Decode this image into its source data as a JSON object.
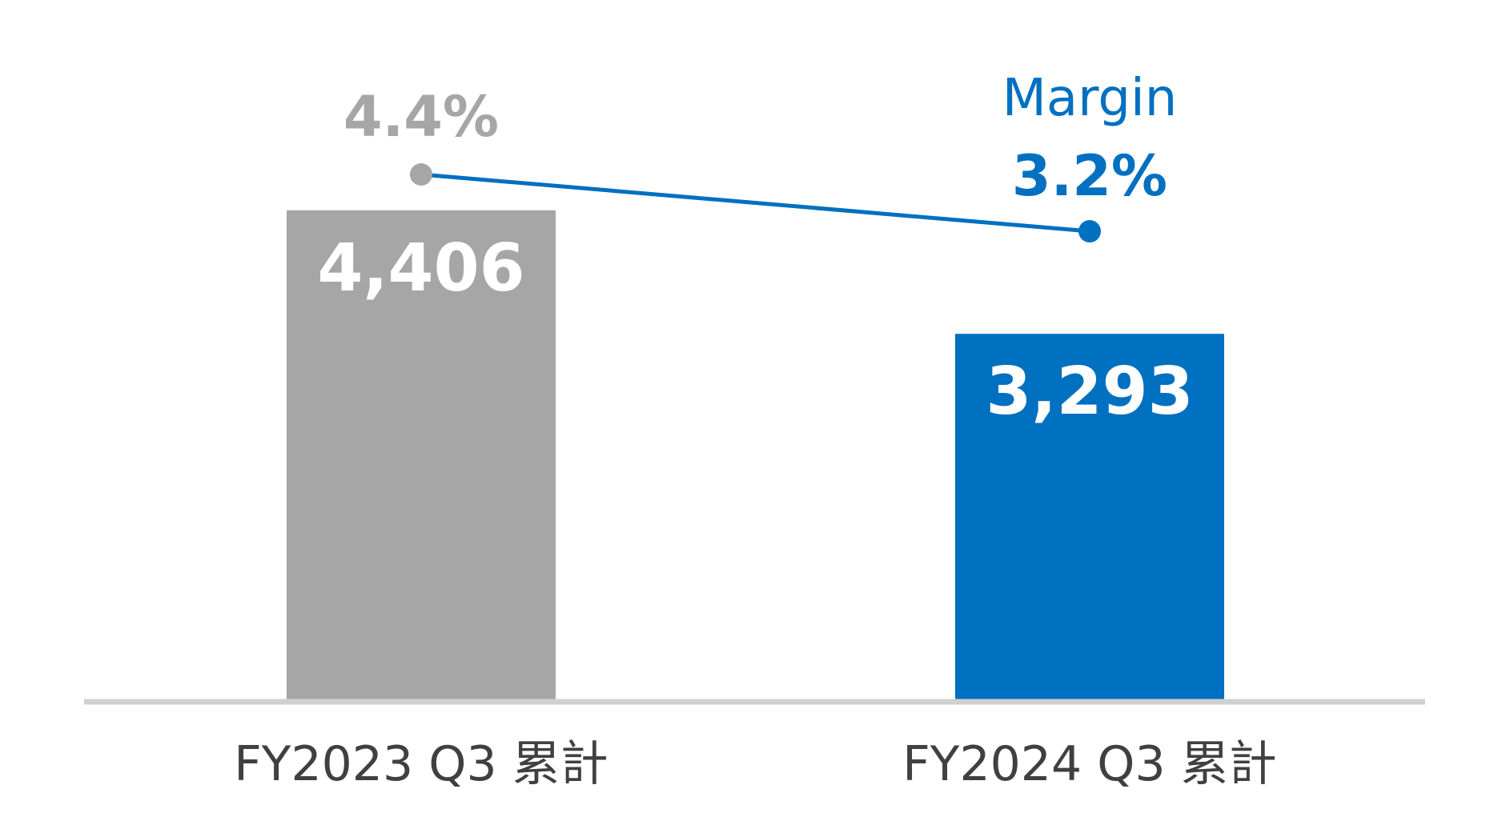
{
  "chart_data": {
    "type": "bar",
    "title": "",
    "xlabel": "",
    "ylabel": "",
    "grid": false,
    "categories": [
      "FY2023 Q3 累計",
      "FY2024 Q3 累計"
    ],
    "series": [
      {
        "name": "Value",
        "values": [
          4406,
          3293
        ],
        "labels": [
          "4,406",
          "3,293"
        ],
        "colors": [
          "#a6a6a6",
          "#0070c0"
        ]
      },
      {
        "name": "Margin",
        "type": "line",
        "values": [
          4.4,
          3.2
        ],
        "labels": [
          "4.4%",
          "3.2%"
        ],
        "colors": [
          "#a6a6a6",
          "#0070c0"
        ],
        "line_color": "#0070c0"
      }
    ],
    "line_legend_label": "Margin",
    "ylim": [
      0,
      6300
    ],
    "axis_color": "#d0d0d0",
    "label_color": "#404040"
  }
}
